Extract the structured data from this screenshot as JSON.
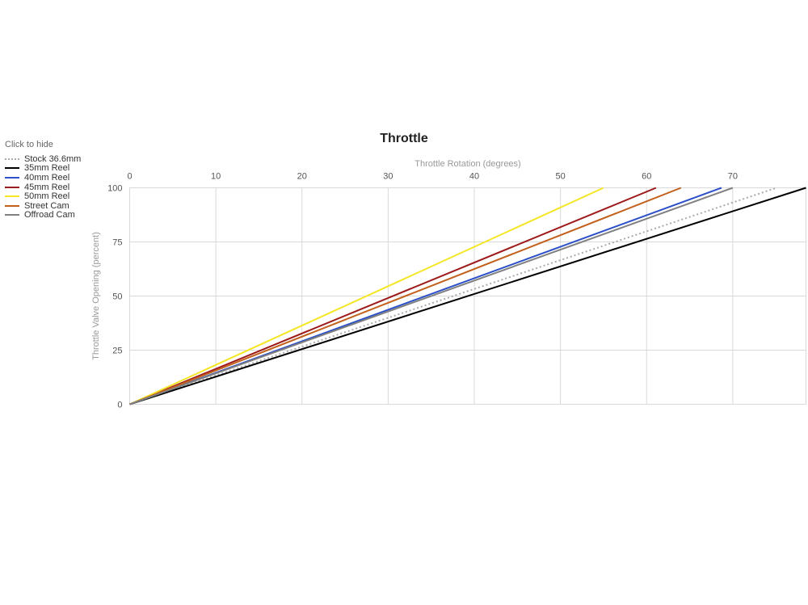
{
  "legend": {
    "title": "Click to hide",
    "items": [
      {
        "label": "Stock 36.6mm",
        "color": "#aaaaaa",
        "style": "dotted"
      },
      {
        "label": "35mm Reel",
        "color": "#000000",
        "style": "solid"
      },
      {
        "label": "40mm Reel",
        "color": "#2b50c8",
        "style": "solid"
      },
      {
        "label": "45mm Reel",
        "color": "#9e1a1a",
        "style": "solid"
      },
      {
        "label": "50mm Reel",
        "color": "#f5e625",
        "style": "solid"
      },
      {
        "label": "Street Cam",
        "color": "#c2611d",
        "style": "solid"
      },
      {
        "label": "Offroad Cam",
        "color": "#808080",
        "style": "solid"
      }
    ]
  },
  "chart_data": {
    "type": "line",
    "title": "Throttle",
    "xlabel": "Throttle Rotation (degrees)",
    "ylabel": "Throttle Valve Opening (percent)",
    "xlim": [
      0,
      78.5
    ],
    "ylim": [
      0,
      100
    ],
    "xticks": [
      0,
      10,
      20,
      30,
      40,
      50,
      60,
      70
    ],
    "yticks": [
      0,
      25,
      50,
      75,
      100
    ],
    "grid": true,
    "x_axis_position": "top",
    "legend_position": "left",
    "grid_color": "#d9d9d9",
    "tick_label_color": "#545454",
    "axis_title_color": "#999999",
    "series": [
      {
        "name": "Stock 36.6mm",
        "color": "#aaaaaa",
        "dash": "dotted",
        "points": [
          [
            0,
            0
          ],
          [
            75.1,
            100
          ]
        ]
      },
      {
        "name": "35mm Reel",
        "color": "#000000",
        "dash": "solid",
        "points": [
          [
            0,
            0
          ],
          [
            78.5,
            100
          ]
        ]
      },
      {
        "name": "40mm Reel",
        "color": "#2b50c8",
        "dash": "solid",
        "points": [
          [
            0,
            0
          ],
          [
            68.7,
            100
          ]
        ]
      },
      {
        "name": "45mm Reel",
        "color": "#9e1a1a",
        "dash": "solid",
        "points": [
          [
            0,
            0
          ],
          [
            61.1,
            100
          ]
        ]
      },
      {
        "name": "50mm Reel",
        "color": "#f5e625",
        "dash": "solid",
        "points": [
          [
            0,
            0
          ],
          [
            55.0,
            100
          ]
        ]
      },
      {
        "name": "Street Cam",
        "color": "#c2611d",
        "dash": "solid",
        "points": [
          [
            0,
            0
          ],
          [
            64.0,
            100
          ]
        ]
      },
      {
        "name": "Offroad Cam",
        "color": "#808080",
        "dash": "solid",
        "points": [
          [
            0,
            0
          ],
          [
            70.0,
            100
          ]
        ]
      }
    ]
  }
}
